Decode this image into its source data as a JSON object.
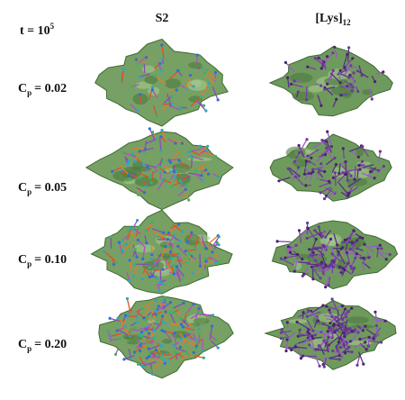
{
  "header": {
    "time": {
      "base": "t = 10",
      "superscript": "5"
    },
    "columns": [
      {
        "label": "S2"
      },
      {
        "label": "[Lys]",
        "subscript": "12"
      }
    ]
  },
  "rows": [
    {
      "symbol": "C",
      "subscript": "p",
      "value": "= 0.02"
    },
    {
      "symbol": "C",
      "subscript": "p",
      "value": "= 0.05"
    },
    {
      "symbol": "C",
      "subscript": "p",
      "value": "= 0.10"
    },
    {
      "symbol": "C",
      "subscript": "p",
      "value": "= 0.20"
    }
  ]
}
